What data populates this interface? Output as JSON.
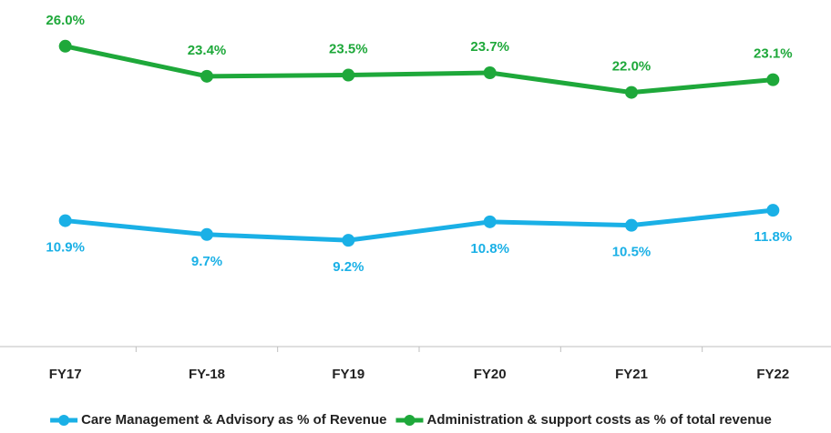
{
  "chart_data": {
    "type": "line",
    "categories": [
      "FY17",
      "FY-18",
      "FY19",
      "FY20",
      "FY21",
      "FY22"
    ],
    "series": [
      {
        "name": "Care Management & Advisory as % of Revenue",
        "color": "#1ab0e6",
        "values": [
          10.9,
          9.7,
          9.2,
          10.8,
          10.5,
          11.8
        ],
        "value_labels": [
          "10.9%",
          "9.7%",
          "9.2%",
          "10.8%",
          "10.5%",
          "11.8%"
        ],
        "label_position": "below"
      },
      {
        "name": "Administration & support costs as % of total revenue",
        "color": "#1ea83a",
        "values": [
          26.0,
          23.4,
          23.5,
          23.7,
          22.0,
          23.1
        ],
        "value_labels": [
          "26.0%",
          "23.4%",
          "23.5%",
          "23.7%",
          "22.0%",
          "23.1%"
        ],
        "label_position": "above"
      }
    ],
    "ylim": [
      0,
      30
    ],
    "grid": false,
    "legend": "bottom"
  }
}
